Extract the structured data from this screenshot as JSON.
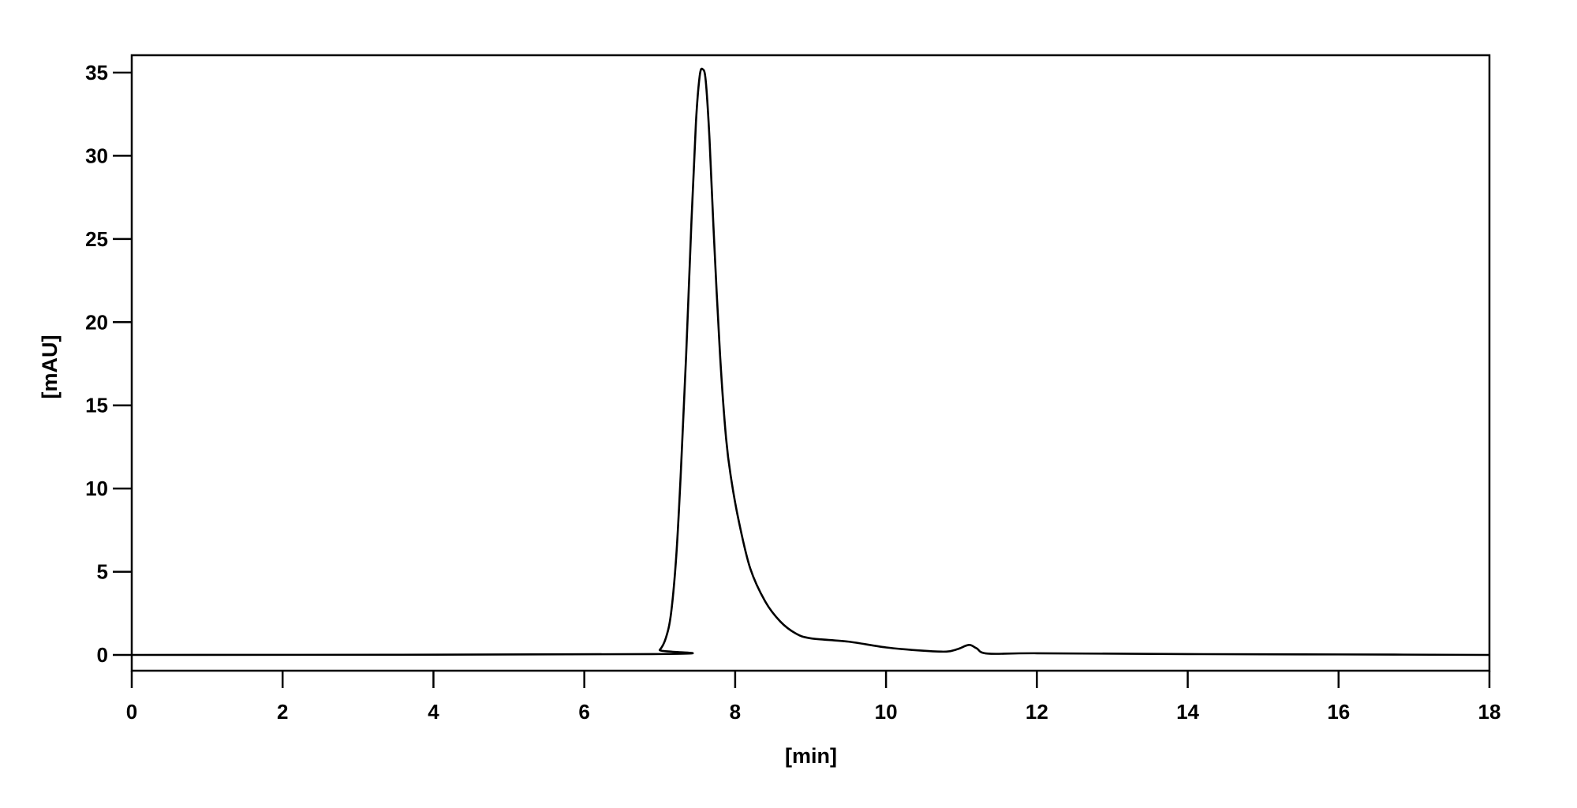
{
  "chart_data": {
    "type": "line",
    "title": "",
    "xlabel": "[min]",
    "ylabel": "[mAU]",
    "xlim": [
      0,
      18
    ],
    "ylim": [
      -1,
      36
    ],
    "x_ticks": [
      0,
      2,
      4,
      6,
      8,
      10,
      12,
      14,
      16,
      18
    ],
    "y_ticks": [
      0,
      5,
      10,
      15,
      20,
      25,
      30,
      35
    ],
    "grid": false,
    "line_color": "#000000",
    "series": [
      {
        "x": [
          0,
          6.9,
          7.0,
          7.08,
          7.15,
          7.22,
          7.28,
          7.35,
          7.42,
          7.48,
          7.53,
          7.57,
          7.61,
          7.66,
          7.72,
          7.8,
          7.88,
          7.95,
          8.05,
          8.2,
          8.4,
          8.6,
          8.8,
          9.0,
          9.5,
          10.0,
          10.5,
          10.8,
          10.95,
          11.1,
          11.2,
          11.35,
          12.0,
          14.0,
          16.0,
          18.0
        ],
        "y": [
          0,
          0.05,
          0.3,
          1.0,
          2.5,
          6,
          11,
          18,
          26,
          32,
          34.8,
          35.2,
          34.5,
          31,
          25,
          18,
          13,
          10.5,
          8,
          5.2,
          3.2,
          2.0,
          1.3,
          1.0,
          0.8,
          0.45,
          0.25,
          0.2,
          0.35,
          0.6,
          0.4,
          0.08,
          0.1,
          0.05,
          0.03,
          0
        ]
      }
    ]
  }
}
